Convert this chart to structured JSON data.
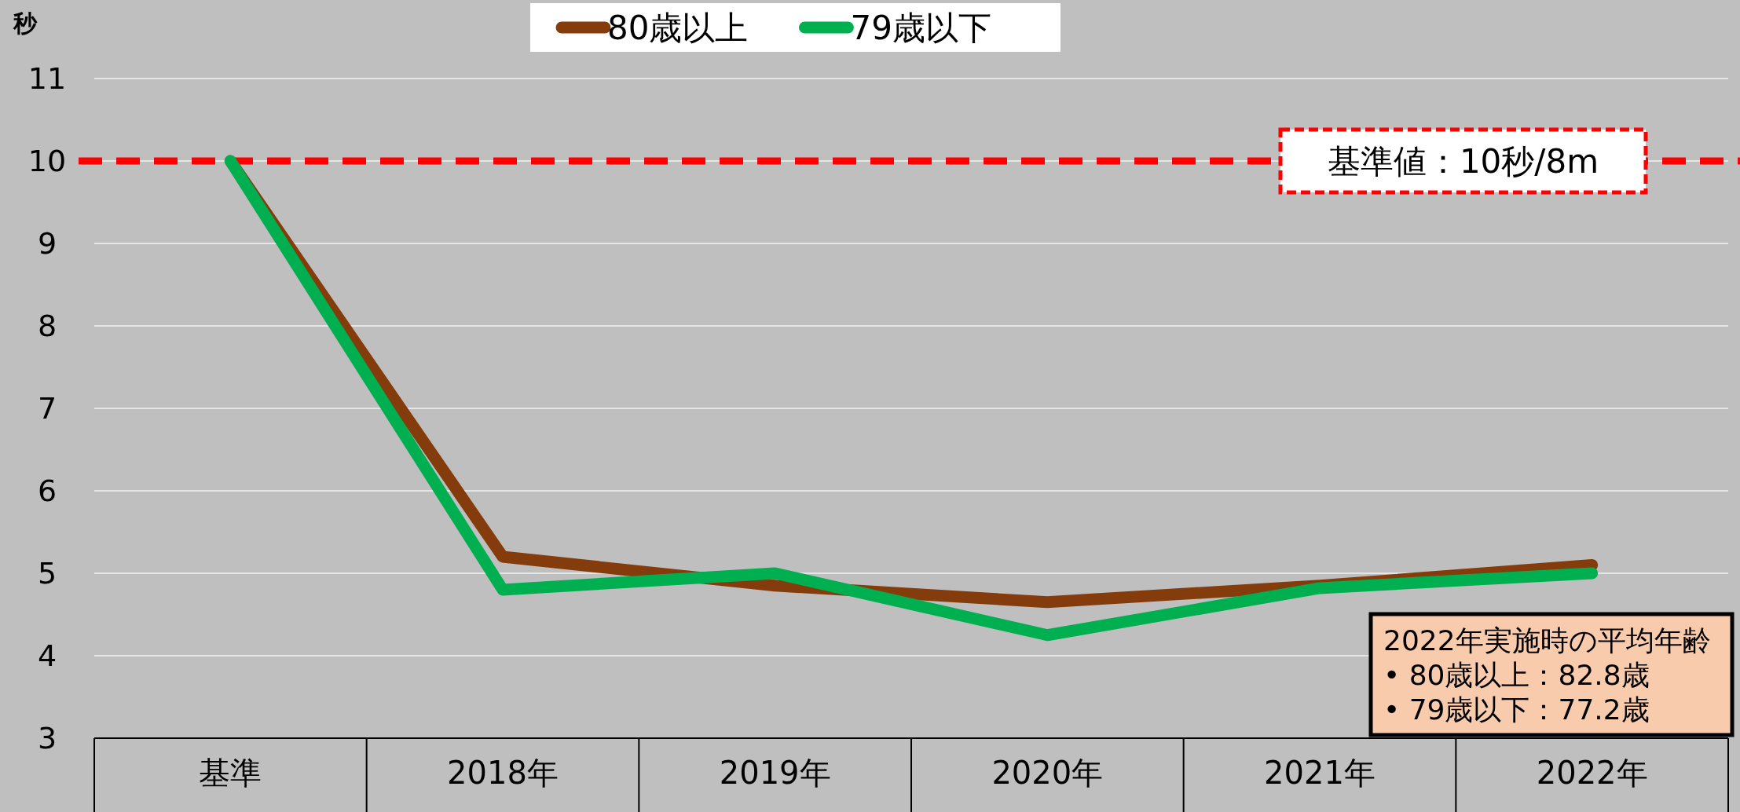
{
  "chart_data": {
    "type": "line",
    "ylabel": "秒",
    "categories": [
      "基準",
      "2018年",
      "2019年",
      "2020年",
      "2021年",
      "2022年"
    ],
    "series": [
      {
        "name": "80歳以上",
        "color": "#843c0c",
        "values": [
          10.0,
          5.2,
          4.85,
          4.65,
          4.85,
          5.1
        ]
      },
      {
        "name": "79歳以下",
        "color": "#00b050",
        "values": [
          10.0,
          4.8,
          5.0,
          4.25,
          4.82,
          5.0
        ]
      }
    ],
    "ylim": [
      3,
      11
    ],
    "yticks": [
      3,
      4,
      5,
      6,
      7,
      8,
      9,
      10,
      11
    ],
    "grid": "y",
    "legend": "top",
    "marker": "none",
    "line_style": "solid",
    "ref_lines": [
      {
        "axis": "y",
        "value": 10,
        "label": "基準値：10秒/8m",
        "color": "#ff0000",
        "line_style": "dashed"
      }
    ],
    "annotations": [
      "2022年実施時の平均年齢",
      "• 80歳以上：82.8歳",
      "• 79歳以下：77.2歳"
    ]
  }
}
